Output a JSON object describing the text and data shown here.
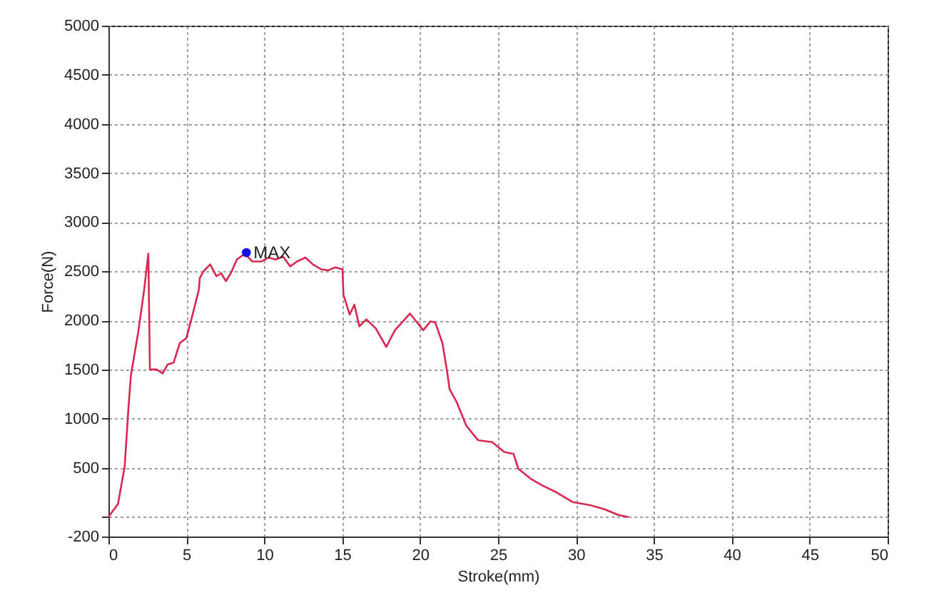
{
  "chart_data": {
    "type": "line",
    "xlabel": "Stroke(mm)",
    "ylabel": "Force(N)",
    "xlim": [
      0,
      50
    ],
    "ylim": [
      -200,
      5000
    ],
    "xticks": [
      0,
      5,
      10,
      15,
      20,
      25,
      30,
      35,
      40,
      45,
      50
    ],
    "yticks": [
      -200,
      {
        "value": 0,
        "label": null
      },
      500,
      1000,
      1500,
      2000,
      2500,
      3000,
      3500,
      4000,
      4500,
      5000
    ],
    "grid": true,
    "annotations": [
      {
        "text": "MAX",
        "x": 8.85,
        "y": 2690
      }
    ],
    "series": [
      {
        "type": "line",
        "color": "#d8284f",
        "x": [
          0,
          0.61,
          1.04,
          1.28,
          1.44,
          1.9,
          2.29,
          2.56,
          2.66,
          3.1,
          3.48,
          3.79,
          4.18,
          4.58,
          5.0,
          5.4,
          5.8,
          5.86,
          6.1,
          6.53,
          6.93,
          7.23,
          7.54,
          7.85,
          8.24,
          8.76,
          9.22,
          9.83,
          10.28,
          10.74,
          11.2,
          11.66,
          12.1,
          12.64,
          13.12,
          13.64,
          14.1,
          14.56,
          15.02,
          15.08,
          15.48,
          15.78,
          16.1,
          16.55,
          17.15,
          17.83,
          18.38,
          18.84,
          19.35,
          19.75,
          20.2,
          20.67,
          20.97,
          21.43,
          21.73,
          21.89,
          22.34,
          22.96,
          23.72,
          24.63,
          25.4,
          26.0,
          26.3,
          27.08,
          27.84,
          28.75,
          29.8,
          30.9,
          31.8,
          32.72,
          33.33
        ],
        "values": [
          0,
          130,
          510,
          1100,
          1440,
          1870,
          2310,
          2680,
          1500,
          1500,
          1460,
          1550,
          1570,
          1770,
          1820,
          2060,
          2310,
          2430,
          2500,
          2570,
          2450,
          2480,
          2400,
          2480,
          2620,
          2680,
          2600,
          2600,
          2640,
          2620,
          2650,
          2550,
          2600,
          2640,
          2570,
          2520,
          2510,
          2540,
          2520,
          2260,
          2060,
          2160,
          1940,
          2010,
          1920,
          1730,
          1900,
          1980,
          2070,
          1990,
          1900,
          1990,
          1980,
          1770,
          1480,
          1300,
          1170,
          930,
          780,
          760,
          660,
          640,
          490,
          390,
          320,
          250,
          150,
          120,
          80,
          20,
          0
        ]
      },
      {
        "type": "scatter",
        "color": "#1010f0",
        "x": [
          8.85
        ],
        "values": [
          2690
        ]
      }
    ]
  }
}
